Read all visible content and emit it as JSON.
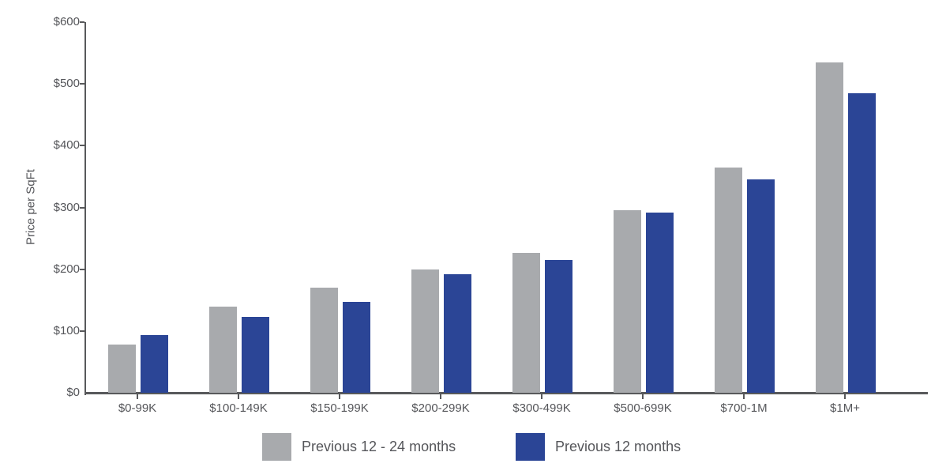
{
  "colors": {
    "axis": "#58595b",
    "text": "#55565a",
    "background": "#ffffff",
    "series_gray": "#a8aaad",
    "series_blue": "#2b4596"
  },
  "chart_data": {
    "type": "bar",
    "title": "",
    "xlabel": "",
    "ylabel": "Price per SqFt",
    "ylim": [
      0,
      600
    ],
    "y_tick_interval": 100,
    "y_tick_labels": [
      "$0",
      "$100",
      "$200",
      "$300",
      "$400",
      "$500",
      "$600"
    ],
    "grid": false,
    "legend_position": "bottom",
    "categories": [
      "$0-99K",
      "$100-149K",
      "$150-199K",
      "$200-299K",
      "$300-499K",
      "$500-699K",
      "$700-1M",
      "$1M+"
    ],
    "series": [
      {
        "name": "Previous 12 - 24 months",
        "color": "#a8aaad",
        "values": [
          78,
          140,
          170,
          200,
          226,
          296,
          365,
          535
        ]
      },
      {
        "name": "Previous 12 months",
        "color": "#2b4596",
        "values": [
          93,
          123,
          147,
          192,
          215,
          292,
          346,
          485
        ]
      }
    ]
  }
}
